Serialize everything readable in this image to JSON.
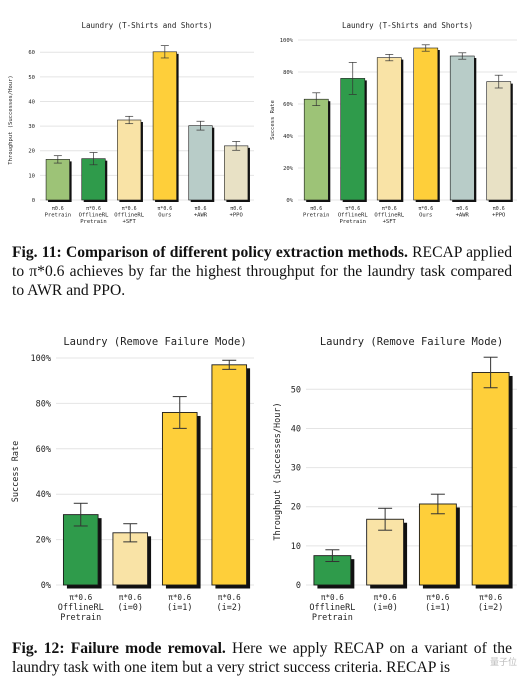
{
  "figure11": {
    "caption": {
      "label": "Fig. 11:",
      "bold": "Comparison of different policy extraction methods.",
      "text": " RECAP applied to π*0.6 achieves by far the highest throughput for the laundry task compared to AWR and PPO."
    }
  },
  "figure12": {
    "caption": {
      "label": "Fig. 12:",
      "bold": "Failure mode removal.",
      "text": " Here we apply RECAP on a variant of the laundry task with one item but a very strict success criteria. RECAP is"
    }
  },
  "watermark": "量子位",
  "chart_data": [
    {
      "type": "bar",
      "title": "Laundry (T-Shirts and Shorts)",
      "ylabel": "Throughput (Successes/Hour)",
      "xlabel": "",
      "ylim": [
        0,
        65
      ],
      "yticks": [
        0,
        10,
        20,
        30,
        40,
        50,
        60
      ],
      "ytick_labels": [
        "0",
        "10",
        "20",
        "30",
        "40",
        "50",
        "60"
      ],
      "grid": true,
      "categories": [
        [
          "π0.6",
          "Pretrain"
        ],
        [
          "π*0.6",
          "OfflineRL",
          "Pretrain"
        ],
        [
          "π*0.6",
          "OfflineRL",
          "+SFT"
        ],
        [
          "π*0.6",
          "Ours"
        ],
        [
          "π0.6",
          "+AWR"
        ],
        [
          "π0.6",
          "+PPO"
        ]
      ],
      "values": [
        16.5,
        16.8,
        32.5,
        60.2,
        30.2,
        22.0
      ],
      "errors": [
        1.5,
        2.5,
        1.5,
        2.5,
        1.8,
        1.8
      ],
      "colors": [
        "#9dc377",
        "#2f9b4b",
        "#f9e3a6",
        "#fecf3a",
        "#b8ccc8",
        "#e8e1c5"
      ]
    },
    {
      "type": "bar",
      "title": "Laundry (T-Shirts and Shorts)",
      "ylabel": "Success Rate",
      "xlabel": "",
      "ylim": [
        0,
        1.0
      ],
      "yticks": [
        0,
        0.2,
        0.4,
        0.6,
        0.8,
        1.0
      ],
      "ytick_labels": [
        "0%",
        "20%",
        "40%",
        "60%",
        "80%",
        "100%"
      ],
      "grid": true,
      "categories": [
        [
          "π0.6",
          "Pretrain"
        ],
        [
          "π*0.6",
          "OfflineRL",
          "Pretrain"
        ],
        [
          "π*0.6",
          "OfflineRL",
          "+SFT"
        ],
        [
          "π*0.6",
          "Ours"
        ],
        [
          "π0.6",
          "+AWR"
        ],
        [
          "π0.6",
          "+PPO"
        ]
      ],
      "values": [
        0.63,
        0.76,
        0.89,
        0.95,
        0.9,
        0.74
      ],
      "errors": [
        0.04,
        0.1,
        0.02,
        0.02,
        0.02,
        0.04
      ],
      "colors": [
        "#9dc377",
        "#2f9b4b",
        "#f9e3a6",
        "#fecf3a",
        "#b8ccc8",
        "#e8e1c5"
      ]
    },
    {
      "type": "bar",
      "title": "Laundry (Remove Failure Mode)",
      "ylabel": "Success Rate",
      "xlabel": "",
      "ylim": [
        0,
        1.0
      ],
      "yticks": [
        0,
        0.2,
        0.4,
        0.6,
        0.8,
        1.0
      ],
      "ytick_labels": [
        "0%",
        "20%",
        "40%",
        "60%",
        "80%",
        "100%"
      ],
      "grid": true,
      "categories": [
        [
          "π*0.6",
          "OfflineRL",
          "Pretrain"
        ],
        [
          "π*0.6",
          "(i=0)"
        ],
        [
          "π*0.6",
          "(i=1)"
        ],
        [
          "π*0.6",
          "(i=2)"
        ]
      ],
      "values": [
        0.31,
        0.23,
        0.76,
        0.97
      ],
      "errors": [
        0.05,
        0.04,
        0.07,
        0.02
      ],
      "colors": [
        "#2f9b4b",
        "#f9e3a6",
        "#fecf3a",
        "#fecf3a"
      ]
    },
    {
      "type": "bar",
      "title": "Laundry (Remove Failure Mode)",
      "ylabel": "Throughput (Successes/Hour)",
      "xlabel": "",
      "ylim": [
        0,
        58
      ],
      "yticks": [
        0,
        10,
        20,
        30,
        40,
        50
      ],
      "ytick_labels": [
        "0",
        "10",
        "20",
        "30",
        "40",
        "50"
      ],
      "grid": true,
      "categories": [
        [
          "π*0.6",
          "OfflineRL",
          "Pretrain"
        ],
        [
          "π*0.6",
          "(i=0)"
        ],
        [
          "π*0.6",
          "(i=1)"
        ],
        [
          "π*0.6",
          "(i=2)"
        ]
      ],
      "values": [
        7.5,
        16.8,
        20.7,
        54.3
      ],
      "errors": [
        1.5,
        2.8,
        2.5,
        3.9
      ],
      "colors": [
        "#2f9b4b",
        "#f9e3a6",
        "#fecf3a",
        "#fecf3a"
      ]
    }
  ]
}
